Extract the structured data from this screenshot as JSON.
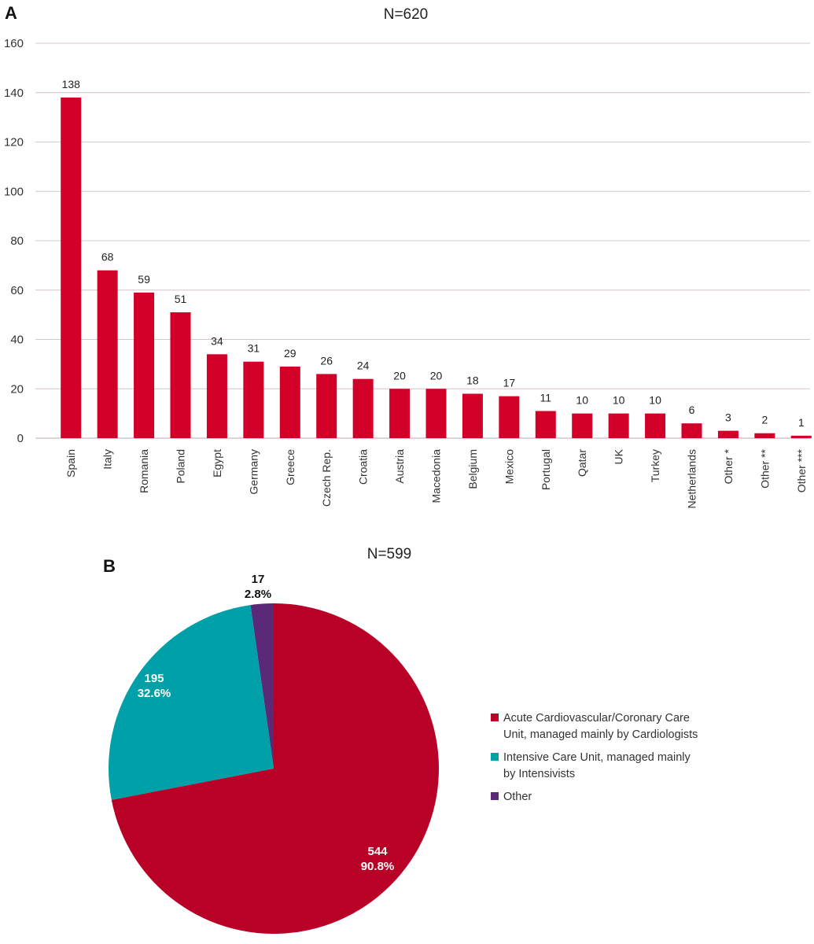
{
  "panels": {
    "a_letter": "A",
    "b_letter": "B"
  },
  "colors": {
    "bar": "#d20028",
    "grid": "#d3c6cc",
    "slice_acute": "#b90026",
    "slice_icu": "#00a0a8",
    "slice_other": "#5a2a78"
  },
  "chart_data": [
    {
      "type": "bar",
      "title": "N=620",
      "categories": [
        "Spain",
        "Italy",
        "Romania",
        "Poland",
        "Egypt",
        "Germany",
        "Greece",
        "Czech Rep.",
        "Croatia",
        "Austria",
        "Macedonia",
        "Belgium",
        "Mexico",
        "Portugal",
        "Qatar",
        "UK",
        "Turkey",
        "Netherlands",
        "Other *",
        "Other **",
        "Other ***"
      ],
      "values": [
        138,
        68,
        59,
        51,
        34,
        31,
        29,
        26,
        24,
        20,
        20,
        18,
        17,
        11,
        10,
        10,
        10,
        6,
        3,
        2,
        1
      ],
      "yticks": [
        "0",
        "20",
        "40",
        "60",
        "80",
        "100",
        "120",
        "140",
        "160"
      ],
      "ylim": [
        0,
        160
      ],
      "grid": true
    },
    {
      "type": "pie",
      "title": "N=599",
      "slices": [
        {
          "name": "Acute Cardiovascular/Coronary Care Unit, managed mainly by Cardiologists",
          "value": 544,
          "label_count": "544",
          "label_pct": "90.8%"
        },
        {
          "name": "Intensive Care Unit, managed mainly by Intensivists",
          "value": 195,
          "label_count": "195",
          "label_pct": "32.6%"
        },
        {
          "name": "Other",
          "value": 17,
          "label_count": "17",
          "label_pct": "2.8%"
        }
      ],
      "legend": [
        {
          "lines": [
            "Acute Cardiovascular/Coronary Care",
            "Unit, managed mainly by Cardiologists"
          ]
        },
        {
          "lines": [
            "Intensive Care Unit, managed mainly",
            "by Intensivists"
          ]
        },
        {
          "lines": [
            "Other"
          ]
        }
      ],
      "legend_position": "right"
    }
  ]
}
